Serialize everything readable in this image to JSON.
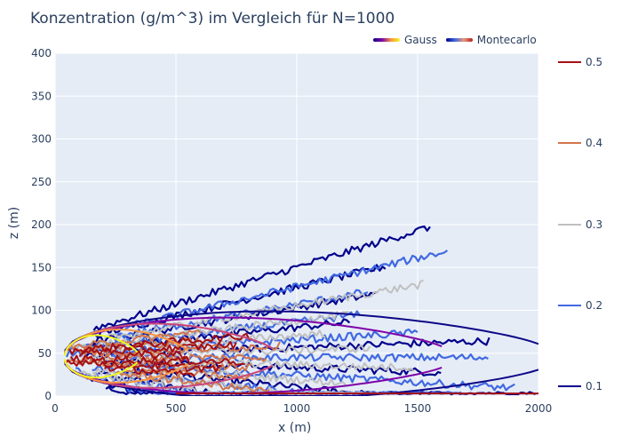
{
  "colors": {
    "gauss_gradient": [
      "#0d0887",
      "#7e03a8",
      "#cc4778",
      "#f89540",
      "#f0f921"
    ],
    "mc_gradient": [
      "#00008b",
      "#4169e1",
      "#c0c0c0",
      "#e9967a",
      "#b22222"
    ],
    "plot_bg": "#e5ecf6",
    "grid": "#ffffff"
  },
  "chart_data": {
    "type": "contour",
    "title": "Konzentration (g/m^3) im Vergleich für N=1000",
    "xlabel": "x (m)",
    "ylabel": "z (m)",
    "xlim": [
      0,
      2000
    ],
    "ylim": [
      0,
      400
    ],
    "x_ticks": [
      "0",
      "500",
      "1000",
      "1500",
      "2000"
    ],
    "y_ticks": [
      "0",
      "50",
      "100",
      "150",
      "200",
      "250",
      "300",
      "350",
      "400"
    ],
    "legend_placement": "top-right",
    "grid": true,
    "series": [
      {
        "name": "Gauss",
        "kind": "analytic contours",
        "levels": [
          0.1,
          0.2,
          0.3,
          0.4,
          0.5
        ]
      },
      {
        "name": "Montecarlo",
        "kind": "simulated contours",
        "levels": [
          0.1,
          0.2,
          0.3,
          0.4,
          0.5
        ]
      }
    ],
    "colorbar": {
      "levels": [
        "0.1",
        "0.2",
        "0.3",
        "0.4",
        "0.5"
      ],
      "colors": [
        "#00008b",
        "#4169e1",
        "#c0c0c0",
        "#d2764b",
        "#a50f15"
      ]
    }
  }
}
